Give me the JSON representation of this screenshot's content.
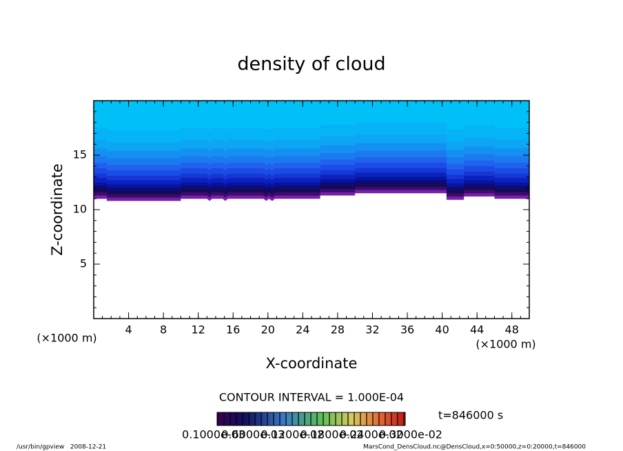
{
  "chart_data": {
    "type": "contour",
    "title": "density of cloud",
    "x_label": "X-coordinate",
    "y_label": "Z-coordinate",
    "x_unit": "(×1000 m)",
    "y_unit": "(×1000 m)",
    "xlim": [
      0,
      50
    ],
    "ylim": [
      0,
      20
    ],
    "xticks": [
      4,
      8,
      12,
      16,
      20,
      24,
      28,
      32,
      36,
      40,
      44,
      48
    ],
    "yticks": [
      5,
      10,
      15
    ],
    "cloud_base_x": [
      0,
      1.5,
      1.5,
      10,
      10,
      13,
      13.3,
      13.6,
      14.8,
      15.1,
      15.4,
      19.5,
      19.8,
      20.1,
      20.5,
      20.8,
      21.1,
      26,
      26,
      30,
      30,
      40.5,
      40.5,
      42.5,
      42.5,
      46,
      46,
      50
    ],
    "cloud_base_z": [
      11.0,
      11.0,
      10.8,
      10.8,
      11.0,
      11.0,
      10.8,
      11.0,
      11.0,
      10.8,
      11.0,
      11.0,
      10.8,
      11.0,
      10.8,
      11.0,
      11.0,
      11.0,
      11.3,
      11.3,
      11.5,
      11.5,
      10.9,
      10.9,
      11.2,
      11.2,
      11.0,
      11.0
    ],
    "band_colors": [
      "#7a1fa8",
      "#3c0b6e",
      "#180a52",
      "#0a0c78",
      "#0814a0",
      "#0c22be",
      "#1636d6",
      "#1c4ce6",
      "#2062ee",
      "#1c7af0",
      "#1490f2",
      "#0ca6f4",
      "#04b4f6",
      "#00c0f8"
    ],
    "contour_interval": "CONTOUR INTERVAL = 1.000E-04",
    "colorbar_labels": [
      "0.1000e-03",
      "0.6000e-03",
      "0.1200e-02",
      "0.1800e-02",
      "0.2400e-02",
      "0.3000e-02"
    ],
    "time_label": "t=846000 s",
    "footer_left": "/usr/bin/gpview   2008-12-21",
    "footer_right": "MarsCond_DensCloud.nc@DensCloud,x=0:50000,z=0:20000,t=846000"
  }
}
